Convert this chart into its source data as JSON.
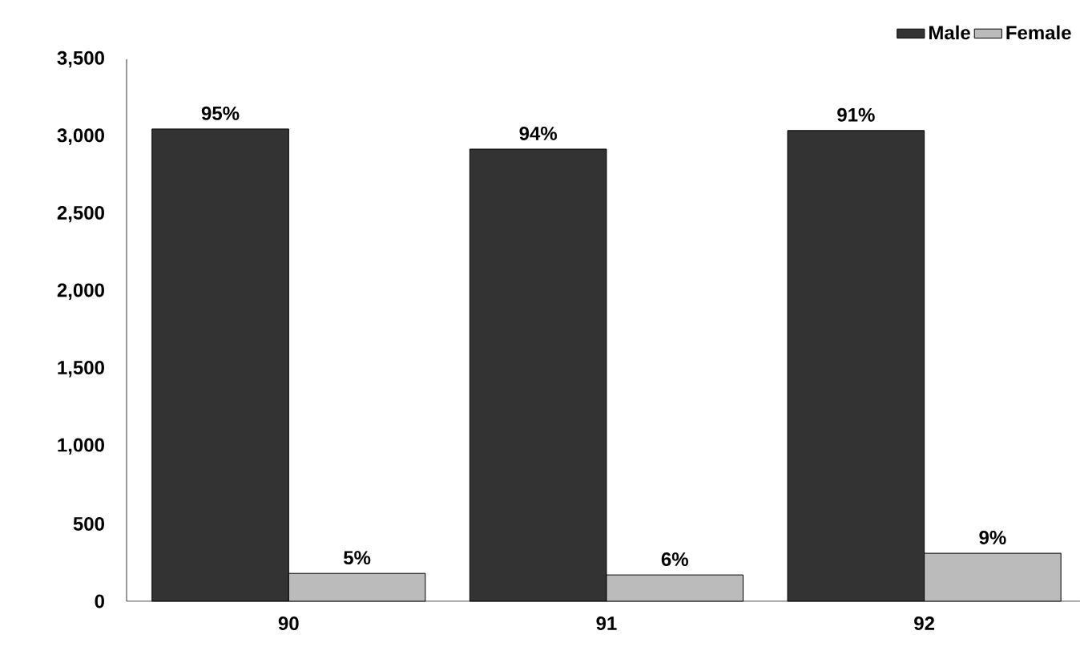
{
  "chart_data": {
    "type": "bar",
    "categories": [
      "90",
      "91",
      "92"
    ],
    "series": [
      {
        "name": "Male",
        "color": "#333333",
        "values": [
          3050,
          2920,
          3040
        ]
      },
      {
        "name": "Female",
        "color": "#bbbbbb",
        "values": [
          180,
          170,
          310
        ]
      }
    ],
    "annotations": [
      {
        "text": "95%",
        "x": "90",
        "y": 3050
      },
      {
        "text": "5%",
        "x": "90",
        "y": 180
      },
      {
        "text": "94%",
        "x": "91",
        "y": 2920
      },
      {
        "text": "6%",
        "x": "91",
        "y": 170
      },
      {
        "text": "91%",
        "x": "92",
        "y": 3040
      },
      {
        "text": "9%",
        "x": "92",
        "y": 310
      }
    ],
    "ylim": [
      0,
      3500
    ],
    "yticks": [
      {
        "value": 0,
        "label": "0"
      },
      {
        "value": 500,
        "label": "500"
      },
      {
        "value": 1000,
        "label": "1,000"
      },
      {
        "value": 1500,
        "label": "1,500"
      },
      {
        "value": 2000,
        "label": "2,000"
      },
      {
        "value": 2500,
        "label": "2,500"
      },
      {
        "value": 3000,
        "label": "3,000"
      },
      {
        "value": 3500,
        "label": "3,500"
      }
    ],
    "grid": false,
    "legend": "top right"
  }
}
